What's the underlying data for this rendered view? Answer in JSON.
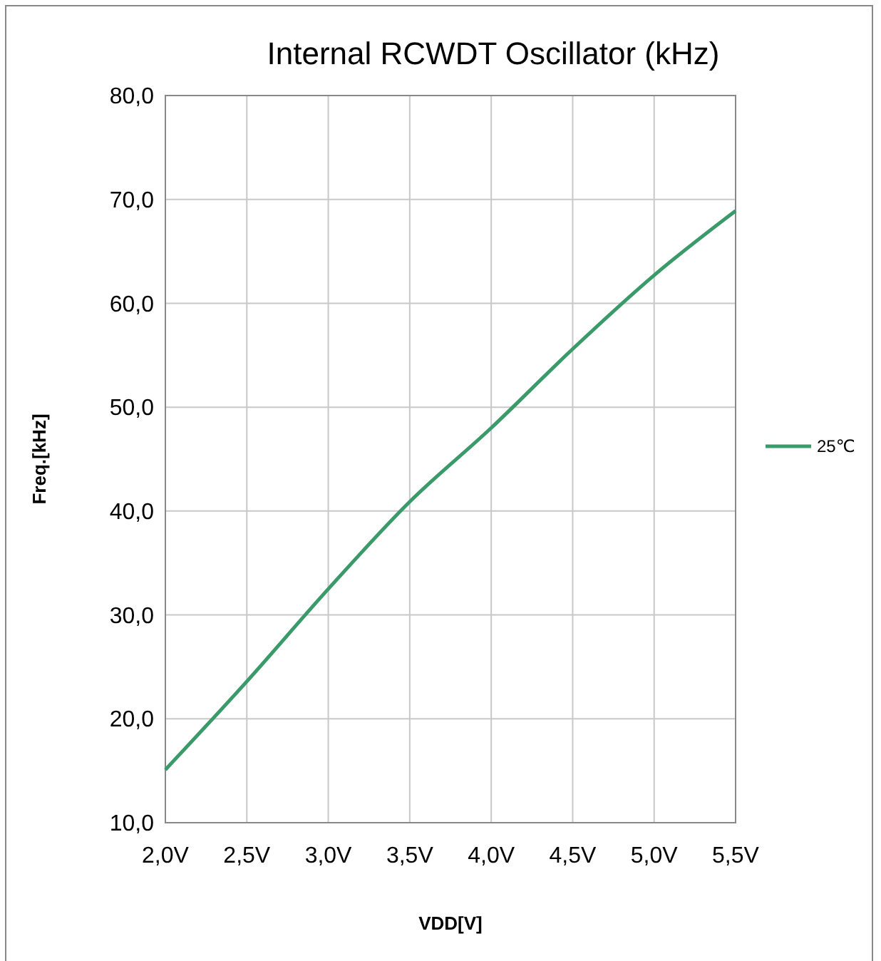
{
  "chart_data": {
    "type": "line",
    "title": "Internal RCWDT Oscillator (kHz)",
    "xlabel": "VDD[V]",
    "ylabel": "Freq.[kHz]",
    "x": [
      2.0,
      2.5,
      3.0,
      3.5,
      4.0,
      4.5,
      5.0,
      5.5
    ],
    "series": [
      {
        "name": "25℃",
        "color": "#3a9a6a",
        "values": [
          15.1,
          23.6,
          32.5,
          40.9,
          48.0,
          55.6,
          62.7,
          68.9
        ]
      }
    ],
    "xlim": [
      2.0,
      5.5
    ],
    "xticks": [
      {
        "value": 2.0,
        "label": "2,0V"
      },
      {
        "value": 2.5,
        "label": "2,5V"
      },
      {
        "value": 3.0,
        "label": "3,0V"
      },
      {
        "value": 3.5,
        "label": "3,5V"
      },
      {
        "value": 4.0,
        "label": "4,0V"
      },
      {
        "value": 4.5,
        "label": "4,5V"
      },
      {
        "value": 5.0,
        "label": "5,0V"
      },
      {
        "value": 5.5,
        "label": "5,5V"
      }
    ],
    "ylim": [
      10,
      80
    ],
    "yticks": [
      {
        "value": 10,
        "label": "10,0"
      },
      {
        "value": 20,
        "label": "20,0"
      },
      {
        "value": 30,
        "label": "30,0"
      },
      {
        "value": 40,
        "label": "40,0"
      },
      {
        "value": 50,
        "label": "50,0"
      },
      {
        "value": 60,
        "label": "60,0"
      },
      {
        "value": 70,
        "label": "70,0"
      },
      {
        "value": 80,
        "label": "80,0"
      }
    ],
    "grid": true,
    "legend": "right",
    "marker": "none",
    "line_style": "solid"
  }
}
